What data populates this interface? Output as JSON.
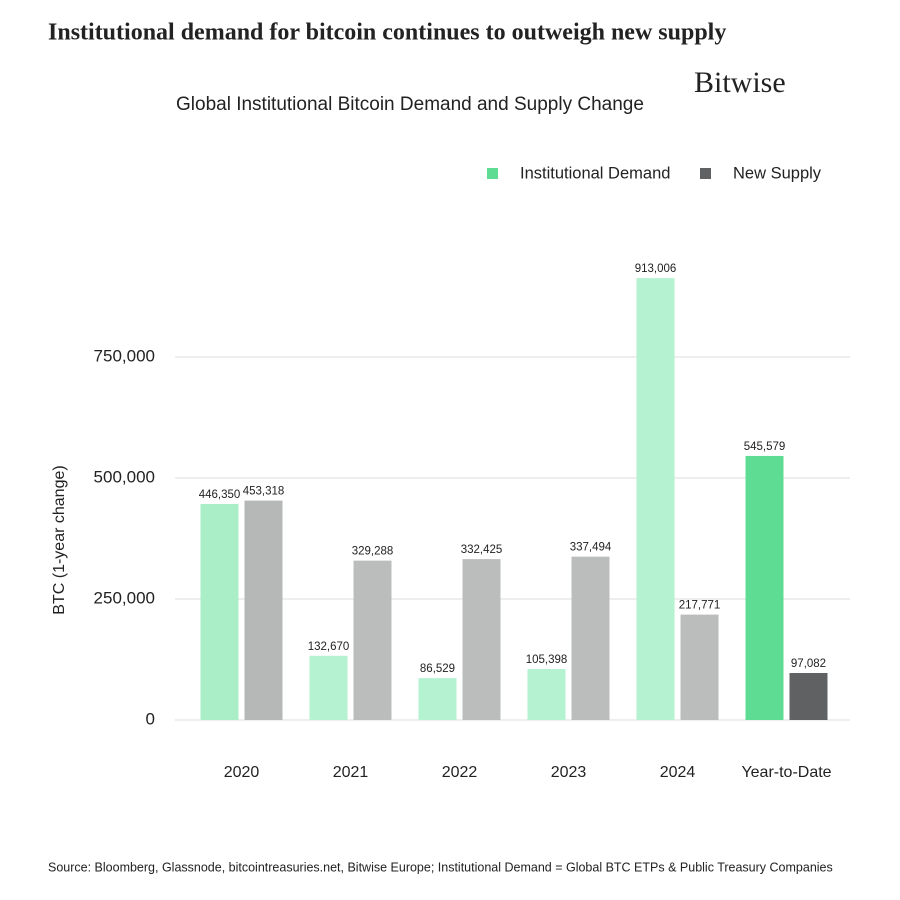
{
  "chart_data": {
    "type": "bar",
    "title": "Institutional demand for bitcoin continues to outweigh new supply",
    "subtitle": "Global Institutional Bitcoin Demand and Supply Change",
    "brand": "Bitwise",
    "y_label": "BTC (1-year change)",
    "source": "Source: Bloomberg, Glassnode, bitcointreasuries.net, Bitwise Europe; Institutional Demand = Global BTC ETPs & Public Treasury Companies",
    "categories": [
      "2020",
      "2021",
      "2022",
      "2023",
      "2024",
      "Year-to-Date"
    ],
    "series": [
      {
        "name": "Institutional Demand",
        "color": "#5edc93",
        "colors": [
          "#a9eec6",
          "#b4f2d1",
          "#b4f2d1",
          "#b4f2d1",
          "#b4f2d1",
          "#5edc93"
        ],
        "values": [
          446350,
          132670,
          86529,
          105398,
          913006,
          545579
        ],
        "value_labels": [
          "446,350",
          "132,670",
          "86,529",
          "105,398",
          "913,006",
          "545,579"
        ]
      },
      {
        "name": "New Supply",
        "color": "#5f6163",
        "colors": [
          "#b6b8b8",
          "#bbbdbd",
          "#bbbdbd",
          "#bbbdbd",
          "#bbbdbd",
          "#5f6163"
        ],
        "values": [
          453318,
          329288,
          332425,
          337494,
          217771,
          97082
        ],
        "value_labels": [
          "453,318",
          "329,288",
          "332,425",
          "337,494",
          "217,771",
          "97,082"
        ]
      }
    ],
    "ylim": [
      0,
      1000000
    ],
    "yticks": [
      0,
      {
        "value": 250000,
        "label": "250,000"
      },
      {
        "value": 500000,
        "label": "500,000"
      },
      {
        "value": 750000,
        "label": "750,000"
      }
    ],
    "grid": true
  }
}
